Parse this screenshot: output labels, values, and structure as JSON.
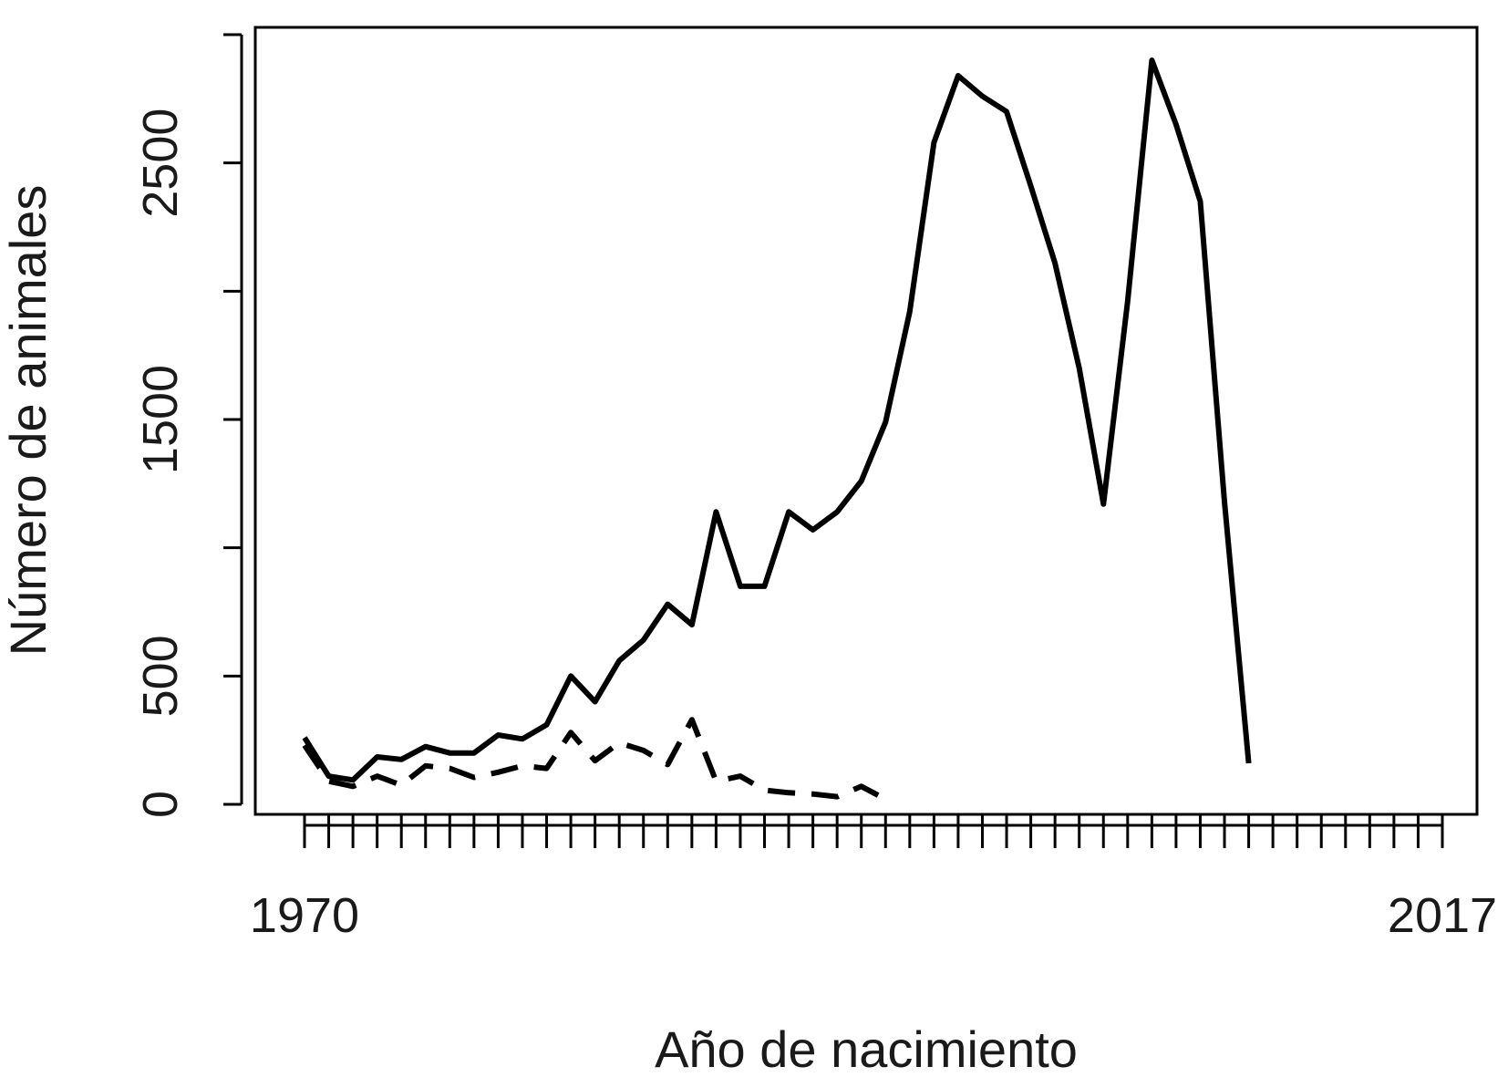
{
  "chart_data": {
    "type": "line",
    "title": "",
    "xlabel": "Año de nacimiento",
    "ylabel": "Número de animales",
    "xlim": [
      1970,
      2017
    ],
    "ylim": [
      0,
      3000
    ],
    "x_tick_values": [
      1970,
      1971,
      1972,
      1973,
      1974,
      1975,
      1976,
      1977,
      1978,
      1979,
      1980,
      1981,
      1982,
      1983,
      1984,
      1985,
      1986,
      1987,
      1988,
      1989,
      1990,
      1991,
      1992,
      1993,
      1994,
      1995,
      1996,
      1997,
      1998,
      1999,
      2000,
      2001,
      2002,
      2003,
      2004,
      2005,
      2006,
      2007,
      2008,
      2009,
      2010,
      2011,
      2012,
      2013,
      2014,
      2015,
      2016,
      2017
    ],
    "x_tick_labels": [
      {
        "x": 1970,
        "label": "1970"
      },
      {
        "x": 2017,
        "label": "2017"
      }
    ],
    "y_ticks": [
      0,
      500,
      1000,
      1500,
      2000,
      2500,
      3000
    ],
    "y_tick_labels": [
      {
        "y": 0,
        "label": "0"
      },
      {
        "y": 500,
        "label": "500"
      },
      {
        "y": 1500,
        "label": "1500"
      },
      {
        "y": 2500,
        "label": "2500"
      }
    ],
    "grid": false,
    "legend": "none",
    "series": [
      {
        "style": "solid",
        "x": [
          1970,
          1971,
          1972,
          1973,
          1974,
          1975,
          1976,
          1977,
          1978,
          1979,
          1980,
          1981,
          1982,
          1983,
          1984,
          1985,
          1986,
          1987,
          1988,
          1989,
          1990,
          1991,
          1992,
          1993,
          1994,
          1995,
          1996,
          1997,
          1998,
          1999,
          2000,
          2001,
          2002,
          2003,
          2004,
          2005,
          2006,
          2007,
          2008,
          2009,
          2010,
          2011,
          2012,
          2013,
          2014,
          2015,
          2016,
          2017
        ],
        "values": [
          260,
          110,
          95,
          185,
          175,
          225,
          200,
          200,
          270,
          255,
          310,
          500,
          400,
          560,
          640,
          780,
          700,
          1140,
          850,
          850,
          1140,
          1070,
          1140,
          1260,
          1490,
          1920,
          2580,
          2840,
          2760,
          2700,
          2410,
          2110,
          1700,
          1170,
          1960,
          2900,
          2650,
          2350,
          1180,
          160,
          null,
          null,
          null,
          null,
          null,
          null,
          null,
          null
        ]
      },
      {
        "style": "dashed",
        "x": [
          1970,
          1971,
          1972,
          1973,
          1974,
          1975,
          1976,
          1977,
          1978,
          1979,
          1980,
          1981,
          1982,
          1983,
          1984,
          1985,
          1986,
          1987,
          1988,
          1989,
          1990,
          1991,
          1992,
          1993,
          1994,
          1995,
          1996,
          1997,
          1998,
          1999,
          2000,
          2001,
          2002,
          2003,
          2004,
          2005,
          2006,
          2007,
          2008,
          2009,
          2010,
          2011,
          2012,
          2013,
          2014,
          2015,
          2016,
          2017
        ],
        "values": [
          230,
          90,
          70,
          110,
          75,
          150,
          140,
          105,
          125,
          150,
          140,
          280,
          170,
          240,
          210,
          155,
          330,
          90,
          110,
          55,
          45,
          40,
          30,
          70,
          20,
          null,
          null,
          null,
          null,
          null,
          null,
          null,
          null,
          null,
          null,
          null,
          null,
          null,
          null,
          null,
          null,
          null,
          null,
          null,
          null,
          null,
          null,
          null
        ]
      }
    ]
  }
}
